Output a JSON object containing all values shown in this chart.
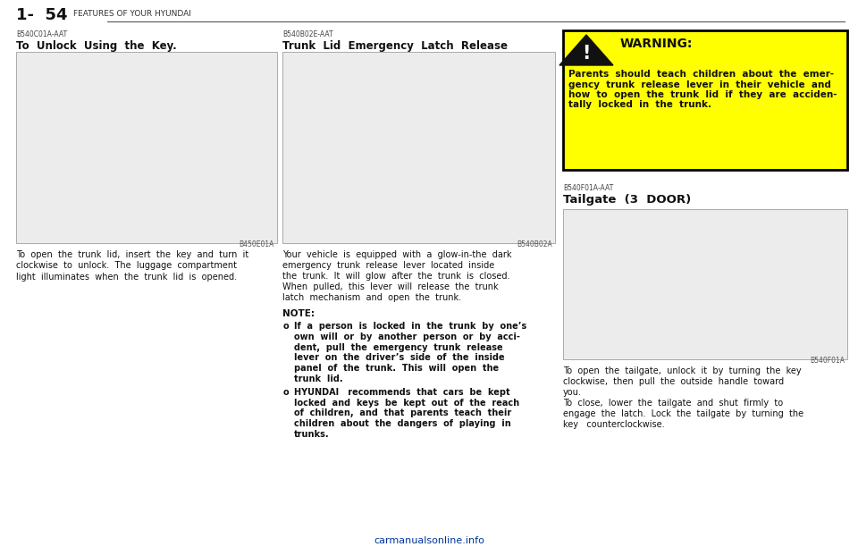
{
  "page_number": "1-  54",
  "page_header": "FEATURES OF YOUR HYUNDAI",
  "bg_color": "#ffffff",
  "header_line_color": "#555555",
  "col1_ref": "B540C01A-AAT",
  "col1_title": "To  Unlock  Using  the  Key.",
  "col1_img_label": "B450E01A",
  "col1_body": "To  open  the  trunk  lid,  insert  the  key  and  turn  it\nclockwise  to  unlock.  The  luggage  compartment\nlight  illuminates  when  the  trunk  lid  is  opened.",
  "col2_ref": "B540B02E-AAT",
  "col2_title": "Trunk  Lid  Emergency  Latch  Release",
  "col2_img_label": "B540B02A",
  "col2_body": "Your  vehicle  is  equipped  with  a  glow-in-the  dark\nemergency  trunk  release  lever  located  inside\nthe  trunk.  It  will  glow  after  the  trunk  is  closed.\nWhen  pulled,  this  lever  will  release  the  trunk\nlatch  mechanism  and  open  the  trunk.",
  "col2_note_title": "NOTE:",
  "col2_note1_bullet": "o",
  "col2_note1_bold": "If  a  person  is  locked  in  the  trunk  by  one’s\nown  will  or  by  another  person  or  by  acci-\ndent,  pull  the  emergency  trunk  release\nlever  on  the  driver’s  side  of  the  inside\npanel  of  the  trunk.  This  will  open  the\ntrunk  lid.",
  "col2_note2_bullet": "o",
  "col2_note2_bold_first": "HYUNDAI",
  "col2_note2_rest": "   recommends  that  cars  be  kept\nlocked  and  keys  be  kept  out  of  the  reach\nof  children,  and  that  parents  teach  their\nchildren  about  the  dangers  of  playing  in\ntrunks.",
  "warn_box_color": "#ffff00",
  "warn_box_border": "#000000",
  "warn_title": "WARNING:",
  "warn_body_lines": [
    "Parents  should  teach  children  about  the  emer-",
    "gency  trunk  release  lever  in  their  vehicle  and",
    "how  to  open  the  trunk  lid  if  they  are  acciden-",
    "tally  locked  in  the  trunk."
  ],
  "col3_ref": "B540F01A-AAT",
  "col3_title": "Tailgate  (3  DOOR)",
  "col3_img_label": "B540F01A",
  "col3_body_lines": [
    "To  open  the  tailgate,  unlock  it  by  turning  the  key",
    "clockwise,  then  pull  the  outside  handle  toward",
    "you.",
    "To  close,  lower  the  tailgate  and  shut  firmly  to",
    "engage  the  latch.  Lock  the  tailgate  by  turning  the",
    "key   counterclockwise."
  ],
  "footer_text": "carmanualsonline.info",
  "footer_color": "#003399"
}
